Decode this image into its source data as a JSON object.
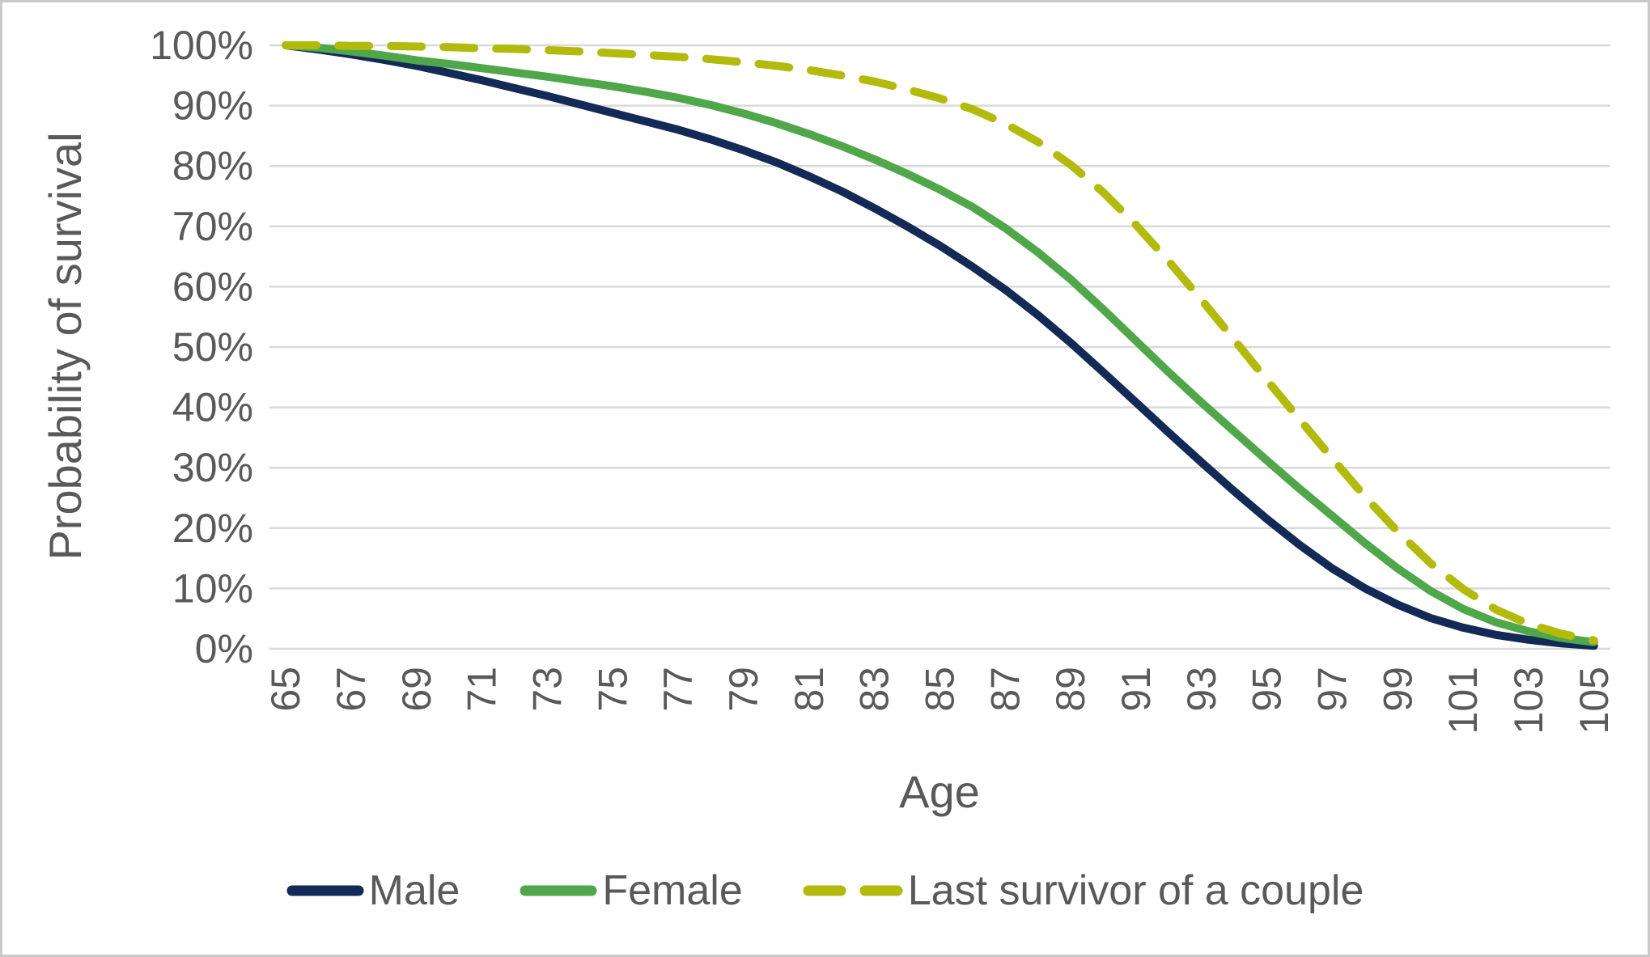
{
  "chart_data": {
    "type": "line",
    "title": "",
    "xlabel": "Age",
    "ylabel": "Probability of survival",
    "x": [
      65,
      66,
      67,
      68,
      69,
      70,
      71,
      72,
      73,
      74,
      75,
      76,
      77,
      78,
      79,
      80,
      81,
      82,
      83,
      84,
      85,
      86,
      87,
      88,
      89,
      90,
      91,
      92,
      93,
      94,
      95,
      96,
      97,
      98,
      99,
      100,
      101,
      102,
      103,
      104,
      105
    ],
    "x_tick_labels": [
      "65",
      "67",
      "69",
      "71",
      "73",
      "75",
      "77",
      "79",
      "81",
      "83",
      "85",
      "87",
      "89",
      "91",
      "93",
      "95",
      "97",
      "99",
      "101",
      "103",
      "105"
    ],
    "y_tick_labels": [
      "0%",
      "10%",
      "20%",
      "30%",
      "40%",
      "50%",
      "60%",
      "70%",
      "80%",
      "90%",
      "100%"
    ],
    "ylim": [
      0,
      100
    ],
    "grid": "horizontal",
    "legend_position": "bottom",
    "series": [
      {
        "name": "Male",
        "style": "solid",
        "color": "#132a56",
        "values": [
          100,
          99.3,
          98.5,
          97.6,
          96.6,
          95.4,
          94.2,
          92.9,
          91.6,
          90.2,
          88.8,
          87.4,
          86.0,
          84.4,
          82.6,
          80.6,
          78.3,
          75.8,
          73.0,
          70.0,
          66.8,
          63.3,
          59.5,
          55.3,
          50.7,
          45.8,
          40.8,
          35.8,
          30.9,
          26.1,
          21.5,
          17.2,
          13.3,
          10.0,
          7.3,
          5.1,
          3.5,
          2.3,
          1.5,
          0.9,
          0.5
        ]
      },
      {
        "name": "Female",
        "style": "solid",
        "color": "#50a74a",
        "values": [
          100,
          99.6,
          99.0,
          98.3,
          97.5,
          96.9,
          96.2,
          95.5,
          94.8,
          94.0,
          93.2,
          92.3,
          91.3,
          90.1,
          88.7,
          87.1,
          85.3,
          83.3,
          81.1,
          78.7,
          76.1,
          73.2,
          69.7,
          65.7,
          61.2,
          56.2,
          51.0,
          45.8,
          40.8,
          36.0,
          31.2,
          26.5,
          22.0,
          17.5,
          13.3,
          9.6,
          6.6,
          4.4,
          2.9,
          1.8,
          1.1
        ]
      },
      {
        "name": "Last survivor of a couple",
        "style": "dashed",
        "color": "#b2bb0b",
        "values": [
          100,
          100,
          99.9,
          99.9,
          99.8,
          99.7,
          99.5,
          99.4,
          99.2,
          99.0,
          98.7,
          98.4,
          98.1,
          97.7,
          97.2,
          96.6,
          95.9,
          95.0,
          94.0,
          92.7,
          91.2,
          89.4,
          87.0,
          84.0,
          80.2,
          75.6,
          70.2,
          64.2,
          57.8,
          51.2,
          44.5,
          38.0,
          31.5,
          25.2,
          19.4,
          14.2,
          9.9,
          6.5,
          4.1,
          2.5,
          1.4
        ]
      }
    ],
    "styling": {
      "gridline_color": "#d9d9d9",
      "tick_label_color": "#595959",
      "axis_title_color": "#595959",
      "background_color": "#ffffff",
      "border_color": "#c9c9c9"
    }
  }
}
